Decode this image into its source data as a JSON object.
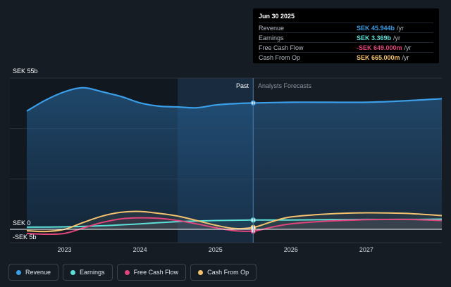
{
  "tooltip": {
    "date": "Jun 30 2025",
    "rows": [
      {
        "label": "Revenue",
        "value": "SEK 45.944b",
        "unit": "/yr",
        "color": "#3b9ee8"
      },
      {
        "label": "Earnings",
        "value": "SEK 3.369b",
        "unit": "/yr",
        "color": "#5de0d8"
      },
      {
        "label": "Free Cash Flow",
        "value": "-SEK 649.000m",
        "unit": "/yr",
        "color": "#e0457b"
      },
      {
        "label": "Cash From Op",
        "value": "SEK 665.000m",
        "unit": "/yr",
        "color": "#f3c26e"
      }
    ]
  },
  "labels": {
    "past": "Past",
    "forecast": "Analysts Forecasts"
  },
  "legend": [
    {
      "label": "Revenue",
      "color": "#3b9ee8"
    },
    {
      "label": "Earnings",
      "color": "#5de0d8"
    },
    {
      "label": "Free Cash Flow",
      "color": "#e0457b"
    },
    {
      "label": "Cash From Op",
      "color": "#f3c26e"
    }
  ],
  "chart_data": {
    "type": "area",
    "y_unit": "SEK b",
    "y_tick_labels": [
      "SEK 55b",
      "SEK 0",
      "-SEK 5b"
    ],
    "y_ticks": [
      55,
      0,
      -5
    ],
    "ylim": [
      -5,
      55
    ],
    "x_tick_labels": [
      "2023",
      "2024",
      "2025",
      "2026",
      "2027"
    ],
    "x_ticks": [
      2023,
      2024,
      2025,
      2026,
      2027
    ],
    "xlim": [
      2022.5,
      2028.0
    ],
    "past_end": 2025.5,
    "highlight_start": 2024.5,
    "grid": true,
    "series": [
      {
        "name": "Revenue",
        "color": "#3b9ee8",
        "fill": true,
        "x": [
          2022.5,
          2022.75,
          2023.0,
          2023.25,
          2023.5,
          2023.75,
          2024.0,
          2024.25,
          2024.5,
          2024.75,
          2025.0,
          2025.25,
          2025.5,
          2026.0,
          2026.5,
          2027.0,
          2027.5,
          2028.0
        ],
        "y": [
          43.0,
          47.0,
          50.0,
          51.5,
          50.0,
          48.3,
          46.0,
          44.8,
          44.5,
          44.2,
          45.2,
          45.7,
          45.944,
          46.2,
          46.2,
          46.2,
          46.7,
          47.5
        ]
      },
      {
        "name": "Earnings",
        "color": "#5de0d8",
        "fill": false,
        "x": [
          2022.5,
          2023.0,
          2023.5,
          2024.0,
          2024.5,
          2025.0,
          2025.5,
          2026.0,
          2026.5,
          2027.0,
          2027.5,
          2028.0
        ],
        "y": [
          0.8,
          0.9,
          1.3,
          2.0,
          2.8,
          3.2,
          3.369,
          3.4,
          3.5,
          3.6,
          3.6,
          3.7
        ]
      },
      {
        "name": "Free Cash Flow",
        "color": "#e0457b",
        "fill": false,
        "x": [
          2022.5,
          2022.75,
          2023.0,
          2023.25,
          2023.5,
          2023.75,
          2024.0,
          2024.25,
          2024.5,
          2024.75,
          2025.0,
          2025.25,
          2025.5,
          2025.75,
          2026.0,
          2026.5,
          2027.0,
          2027.5,
          2028.0
        ],
        "y": [
          -1.5,
          -1.8,
          -1.5,
          0.5,
          2.5,
          3.8,
          4.2,
          4.0,
          3.2,
          2.0,
          0.6,
          -0.5,
          -0.649,
          0.8,
          2.0,
          3.0,
          3.5,
          3.6,
          3.2
        ]
      },
      {
        "name": "Cash From Op",
        "color": "#f3c26e",
        "fill": false,
        "x": [
          2022.5,
          2022.75,
          2023.0,
          2023.25,
          2023.5,
          2023.75,
          2024.0,
          2024.25,
          2024.5,
          2024.75,
          2025.0,
          2025.25,
          2025.5,
          2025.75,
          2026.0,
          2026.5,
          2027.0,
          2027.5,
          2028.0
        ],
        "y": [
          -0.5,
          -0.8,
          0.0,
          2.5,
          4.8,
          6.2,
          6.5,
          5.8,
          4.8,
          3.2,
          1.5,
          0.3,
          0.665,
          2.8,
          4.5,
          5.6,
          6.0,
          5.8,
          5.0
        ]
      }
    ]
  }
}
